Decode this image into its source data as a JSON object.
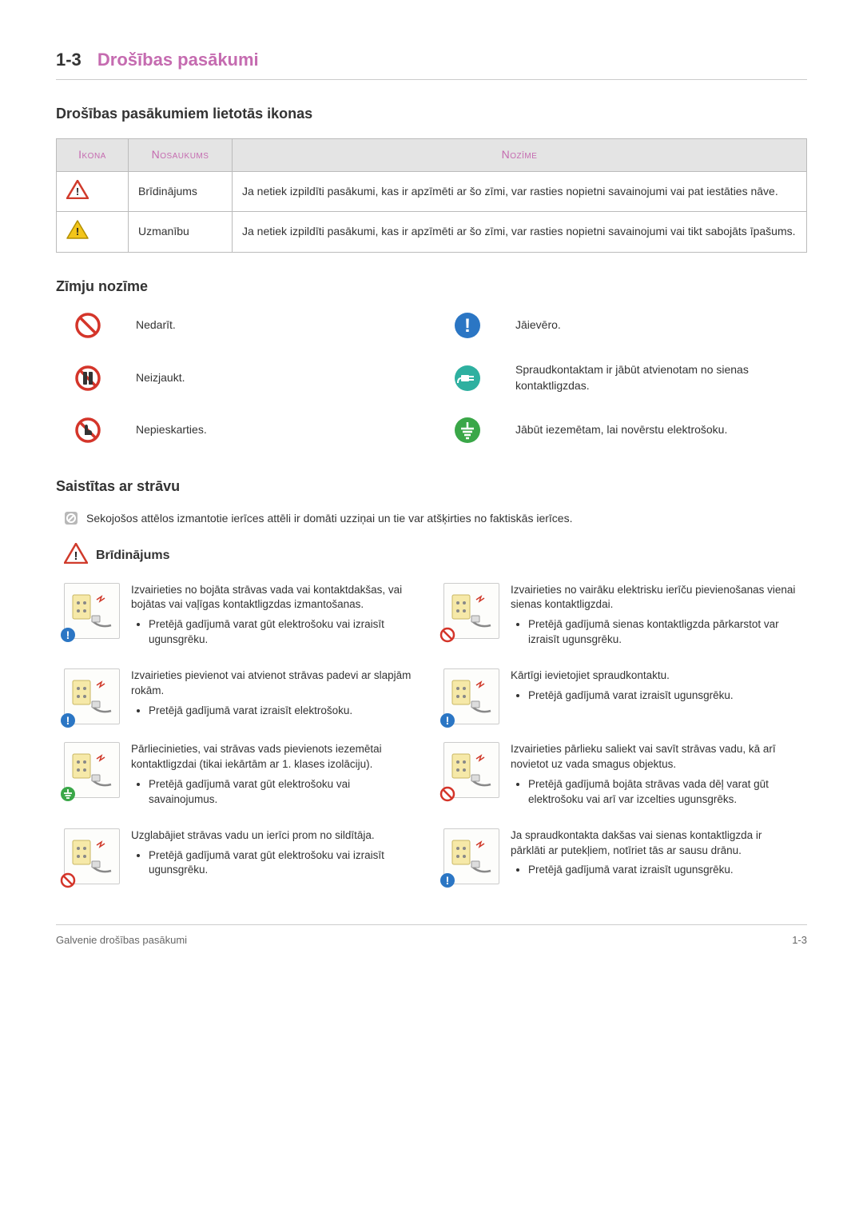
{
  "colors": {
    "accent": "#c56bb0",
    "warning_triangle_red": "#d03a2b",
    "warning_triangle_yellow": "#f3c51a",
    "prohibit_red": "#d4352a",
    "mandatory_blue": "#2b76c4",
    "ground_green": "#3aa748",
    "plug_teal": "#2eb0a0",
    "table_header_bg": "#e4e4e4",
    "border": "#bbbbbb",
    "text": "#333333"
  },
  "section": {
    "number": "1-3",
    "title": "Drošības pasākumi"
  },
  "subsection1_title": "Drošības pasākumiem lietotās ikonas",
  "table": {
    "headers": {
      "icon": "Ikona",
      "name": "Nosaukums",
      "meaning": "Nozīme"
    },
    "rows": [
      {
        "icon_type": "warning-red",
        "name": "Brīdinājums",
        "meaning": "Ja netiek izpildīti pasākumi, kas ir apzīmēti ar šo zīmi, var rasties nopietni savainojumi vai pat iestāties nāve."
      },
      {
        "icon_type": "warning-yellow",
        "name": "Uzmanību",
        "meaning": "Ja netiek izpildīti pasākumi, kas ir apzīmēti ar šo zīmi, var rasties nopietni savainojumi vai tikt sabojāts īpašums."
      }
    ]
  },
  "subsection2_title": "Zīmju nozīme",
  "symbols": [
    {
      "icon": "prohibit",
      "text": "Nedarīt."
    },
    {
      "icon": "mandatory",
      "text": "Jāievēro."
    },
    {
      "icon": "no-disassemble",
      "text": "Neizjaukt."
    },
    {
      "icon": "unplug",
      "text": "Spraudkontaktam ir jābūt atvienotam no sienas kontaktligzdas."
    },
    {
      "icon": "no-touch",
      "text": "Nepieskarties."
    },
    {
      "icon": "ground",
      "text": "Jābūt iezemētam, lai novērstu elektrošoku."
    }
  ],
  "subsection3_title": "Saistītas ar strāvu",
  "note_text": "Sekojošos attēlos izmantotie ierīces attēli ir domāti uzziņai un tie var atšķirties no faktiskās ierīces.",
  "warning_label": "Brīdinājums",
  "precautions": [
    {
      "main": "Izvairieties no bojāta strāvas vada vai kontaktdakšas, vai bojātas vai vaļīgas kontaktligzdas izmantošanas.",
      "bullets": [
        "Pretējā gadījumā varat gūt elektrošoku vai izraisīt ugunsgrēku."
      ],
      "badge": "mandatory"
    },
    {
      "main": "Izvairieties no vairāku elektrisku ierīču pievienošanas vienai sienas kontaktligzdai.",
      "bullets": [
        "Pretējā gadījumā sienas kontaktligzda pārkarstot var izraisīt ugunsgrēku."
      ],
      "badge": "prohibit"
    },
    {
      "main": "Izvairieties pievienot vai atvienot strāvas padevi ar slapjām rokām.",
      "bullets": [
        "Pretējā gadījumā varat izraisīt elektrošoku."
      ],
      "badge": "mandatory"
    },
    {
      "main": "Kārtīgi ievietojiet spraudkontaktu.",
      "bullets": [
        "Pretējā gadījumā varat izraisīt ugunsgrēku."
      ],
      "badge": "mandatory"
    },
    {
      "main": "Pārliecinieties, vai strāvas vads pievienots iezemētai kontaktligzdai (tikai iekārtām ar 1. klases izolāciju).",
      "bullets": [
        "Pretējā gadījumā varat gūt elektrošoku vai savainojumus."
      ],
      "badge": "ground"
    },
    {
      "main": "Izvairieties pārlieku saliekt vai savīt strāvas vadu, kā arī novietot uz vada smagus objektus.",
      "bullets": [
        "Pretējā gadījumā bojāta strāvas vada dēļ varat gūt elektrošoku vai arī var izcelties ugunsgrēks."
      ],
      "badge": "prohibit"
    },
    {
      "main": "Uzglabājiet strāvas vadu un ierīci prom no sildītāja.",
      "bullets": [
        "Pretējā gadījumā varat gūt elektrošoku vai izraisīt ugunsgrēku."
      ],
      "badge": "prohibit"
    },
    {
      "main": "Ja spraudkontakta dakšas vai sienas kontaktligzda ir pārklāti ar putekļiem, notīriet tās ar sausu drānu.",
      "bullets": [
        "Pretējā gadījumā varat izraisīt ugunsgrēku."
      ],
      "badge": "mandatory"
    }
  ],
  "footer": {
    "left": "Galvenie drošības pasākumi",
    "right": "1-3"
  }
}
